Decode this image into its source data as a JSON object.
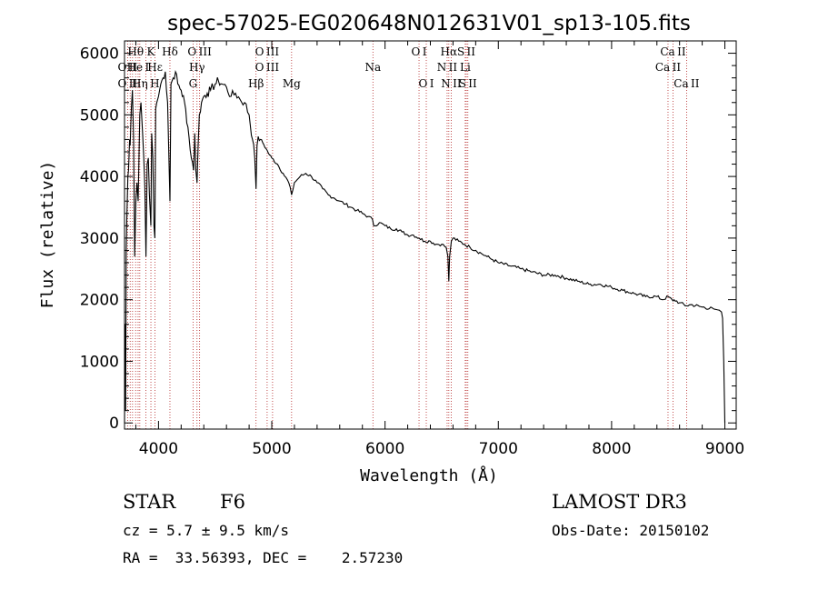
{
  "chart_data": {
    "type": "line",
    "title": "spec-57025-EG020648N012631V01_sp13-105.fits",
    "xlabel": "Wavelength (Å)",
    "ylabel": "Flux (relative)",
    "xlim": [
      3700,
      9100
    ],
    "ylim": [
      -100,
      6200
    ],
    "xticks": [
      4000,
      5000,
      6000,
      7000,
      8000,
      9000
    ],
    "xtick_labels": [
      "4000",
      "5000",
      "6000",
      "7000",
      "8000",
      "9000"
    ],
    "yticks": [
      0,
      1000,
      2000,
      3000,
      4000,
      5000,
      6000
    ],
    "ytick_labels": [
      "0",
      "1000",
      "2000",
      "3000",
      "4000",
      "5000",
      "6000"
    ],
    "series": [
      {
        "name": "spectrum",
        "x": [
          3700,
          3705,
          3710,
          3715,
          3720,
          3730,
          3735,
          3745,
          3750,
          3760,
          3770,
          3780,
          3790,
          3800,
          3810,
          3820,
          3835,
          3845,
          3860,
          3870,
          3880,
          3889,
          3900,
          3910,
          3920,
          3933,
          3940,
          3950,
          3960,
          3968,
          3975,
          3985,
          4000,
          4020,
          4040,
          4060,
          4080,
          4101,
          4110,
          4130,
          4150,
          4170,
          4200,
          4230,
          4260,
          4290,
          4310,
          4320,
          4330,
          4340,
          4350,
          4360,
          4380,
          4400,
          4430,
          4460,
          4500,
          4530,
          4560,
          4600,
          4640,
          4680,
          4720,
          4760,
          4800,
          4830,
          4850,
          4861,
          4870,
          4880,
          4900,
          4920,
          4950,
          4980,
          5000,
          5050,
          5100,
          5150,
          5175,
          5200,
          5250,
          5300,
          5350,
          5400,
          5450,
          5500,
          5550,
          5600,
          5650,
          5700,
          5750,
          5800,
          5850,
          5890,
          5900,
          5950,
          6000,
          6050,
          6100,
          6150,
          6200,
          6250,
          6300,
          6350,
          6400,
          6450,
          6500,
          6540,
          6555,
          6563,
          6570,
          6585,
          6600,
          6650,
          6700,
          6750,
          6800,
          6850,
          6900,
          6950,
          7000,
          7100,
          7200,
          7300,
          7400,
          7500,
          7600,
          7700,
          7800,
          7900,
          8000,
          8100,
          8200,
          8300,
          8400,
          8450,
          8500,
          8542,
          8550,
          8600,
          8662,
          8700,
          8800,
          8900,
          8950,
          8970,
          8980,
          8990,
          9000
        ],
        "y": [
          0,
          1600,
          200,
          2800,
          3300,
          4000,
          4100,
          4600,
          4500,
          5100,
          5400,
          4600,
          2700,
          3600,
          3900,
          3600,
          5000,
          5200,
          4700,
          4300,
          3800,
          2700,
          4200,
          4300,
          3700,
          3200,
          4700,
          4300,
          3200,
          3000,
          5100,
          5200,
          5300,
          5500,
          5600,
          5700,
          5200,
          3600,
          5500,
          5600,
          5700,
          5500,
          5400,
          5200,
          4800,
          4300,
          4100,
          4700,
          4100,
          3900,
          4500,
          5000,
          5200,
          5300,
          5350,
          5400,
          5500,
          5550,
          5500,
          5450,
          5300,
          5350,
          5250,
          5200,
          5000,
          4600,
          4300,
          3800,
          4500,
          4650,
          4600,
          4550,
          4450,
          4350,
          4300,
          4200,
          4050,
          3900,
          3700,
          3900,
          4000,
          4050,
          4000,
          3900,
          3800,
          3700,
          3650,
          3600,
          3550,
          3500,
          3450,
          3400,
          3350,
          3300,
          3200,
          3250,
          3200,
          3150,
          3150,
          3100,
          3050,
          3050,
          3000,
          2950,
          2950,
          2900,
          2900,
          2850,
          2700,
          2300,
          2700,
          2950,
          3000,
          2950,
          2900,
          2850,
          2800,
          2750,
          2700,
          2650,
          2600,
          2550,
          2500,
          2450,
          2400,
          2400,
          2350,
          2300,
          2250,
          2250,
          2200,
          2150,
          2100,
          2050,
          2050,
          2000,
          2050,
          1980,
          2000,
          1950,
          1900,
          1920,
          1880,
          1850,
          1830,
          1800,
          1700,
          1000,
          0
        ]
      }
    ],
    "spectral_lines": [
      {
        "label": "O II",
        "x": 3727,
        "row": 1
      },
      {
        "label": "O II",
        "x": 3727,
        "row": 2
      },
      {
        "label": "Hθ",
        "x": 3798,
        "row": 0
      },
      {
        "label": "He I",
        "x": 3820,
        "row": 1
      },
      {
        "label": "Hη",
        "x": 3835,
        "row": 2
      },
      {
        "label": "K",
        "x": 3933,
        "row": 0
      },
      {
        "label": "Hε",
        "x": 3970,
        "row": 1
      },
      {
        "label": "H",
        "x": 3968,
        "row": 2
      },
      {
        "label": "Hδ",
        "x": 4101,
        "row": 0
      },
      {
        "label": "O III",
        "x": 4363,
        "row": 0
      },
      {
        "label": "Hγ",
        "x": 4340,
        "row": 1
      },
      {
        "label": "G",
        "x": 4305,
        "row": 2
      },
      {
        "label": "Hβ",
        "x": 4861,
        "row": 2
      },
      {
        "label": "O III",
        "x": 4959,
        "row": 0
      },
      {
        "label": "O III",
        "x": 4959,
        "row": 1
      },
      {
        "label": "Mg",
        "x": 5175,
        "row": 2
      },
      {
        "label": "Na",
        "x": 5893,
        "row": 1
      },
      {
        "label": "O I",
        "x": 6300,
        "row": 0
      },
      {
        "label": "O I",
        "x": 6364,
        "row": 2
      },
      {
        "label": "Hα",
        "x": 6563,
        "row": 0
      },
      {
        "label": "N II",
        "x": 6548,
        "row": 1
      },
      {
        "label": "N II",
        "x": 6584,
        "row": 2
      },
      {
        "label": "S II",
        "x": 6717,
        "row": 0
      },
      {
        "label": "Li",
        "x": 6708,
        "row": 1
      },
      {
        "label": "S II",
        "x": 6731,
        "row": 2
      },
      {
        "label": "Ca II",
        "x": 8542,
        "row": 0
      },
      {
        "label": "Ca II",
        "x": 8498,
        "row": 1
      },
      {
        "label": "Ca II",
        "x": 8662,
        "row": 2
      }
    ],
    "line_rule_wavelengths": [
      3727,
      3750,
      3771,
      3798,
      3820,
      3835,
      3889,
      3933,
      3968,
      4101,
      4305,
      4340,
      4363,
      4861,
      4959,
      5007,
      5175,
      5893,
      6300,
      6364,
      6548,
      6563,
      6584,
      6708,
      6717,
      6731,
      8498,
      8542,
      8662
    ]
  },
  "info": {
    "object_class": "STAR",
    "subclass": "F6",
    "survey": "LAMOST DR3",
    "cz": "cz = 5.7 ± 9.5 km/s",
    "obs_date": "Obs-Date: 20150102",
    "coords": "RA =  33.56393, DEC =    2.57230"
  },
  "colors": {
    "line": "#000000",
    "marker_rule": "#b22222",
    "background": "#ffffff"
  }
}
